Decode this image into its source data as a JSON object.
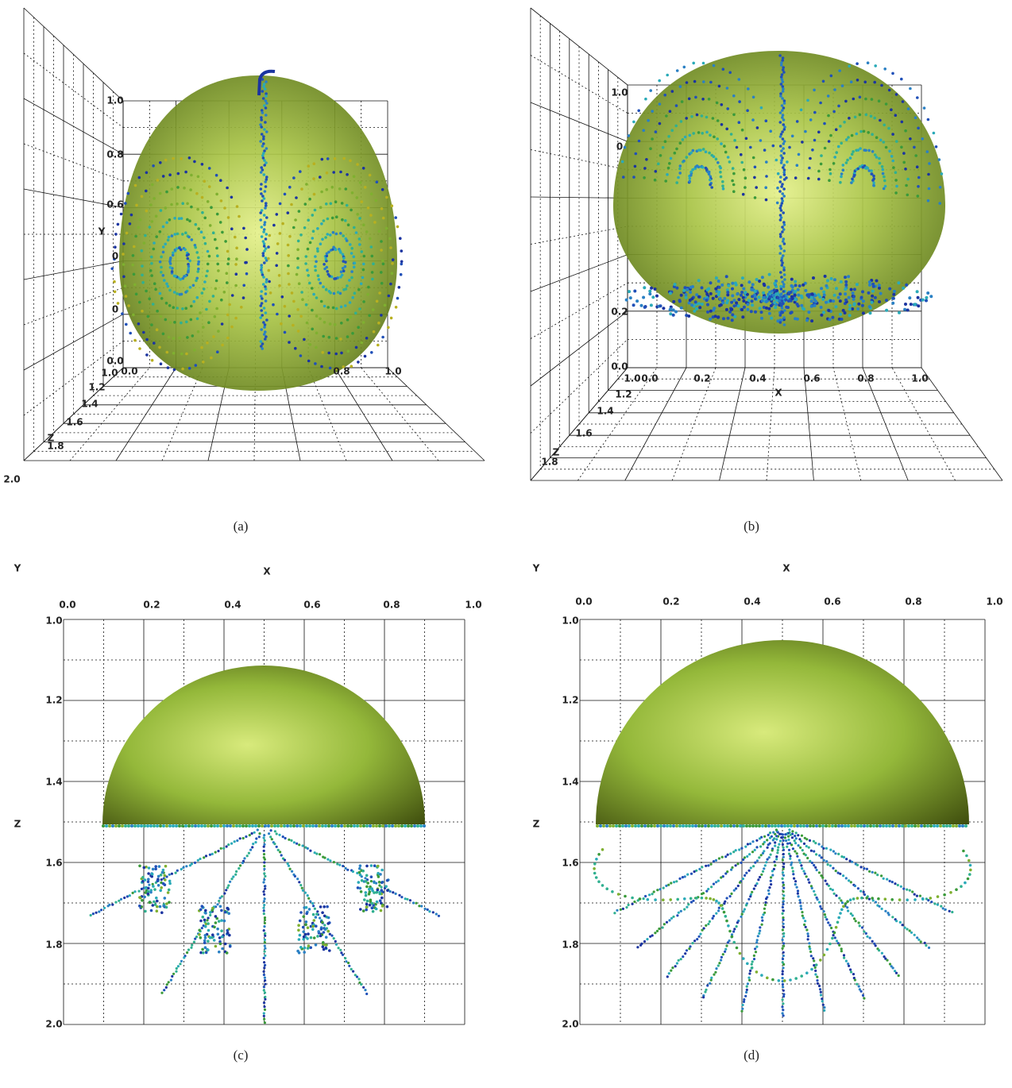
{
  "panels": [
    {
      "caption": "(a)",
      "axis_labels": [
        "Y",
        "Z"
      ],
      "tick_labels": [
        "1.0",
        "0.8",
        "0.6",
        "0",
        "0",
        "0.0",
        "1.0",
        "0.0",
        "0.8",
        "1.0",
        "1.2",
        "1.4",
        "1.6",
        "1.8",
        "2.0"
      ]
    },
    {
      "caption": "(b)",
      "axis_labels": [
        "X",
        "Z"
      ],
      "tick_labels": [
        "1.0",
        "0",
        "0.2",
        "0.0",
        "1.0",
        "0.0",
        "0.2",
        "0.4",
        "0.6",
        "0.8",
        "1.0",
        "1.2",
        "1.4",
        "1.6",
        "1.8"
      ]
    },
    {
      "caption": "(c)",
      "axis_labels": [
        "Y",
        "X",
        "Z"
      ],
      "tick_labels": [
        "0.0",
        "0.2",
        "0.4",
        "0.6",
        "0.8",
        "1.0",
        "1.0",
        "1.2",
        "1.4",
        "1.6",
        "1.8",
        "2.0"
      ]
    },
    {
      "caption": "(d)",
      "axis_labels": [
        "Y",
        "X",
        "Z"
      ],
      "tick_labels": [
        "0.0",
        "0.2",
        "0.4",
        "0.6",
        "0.8",
        "1.0",
        "1.0",
        "1.2",
        "1.4",
        "1.6",
        "1.8",
        "2.0"
      ]
    }
  ]
}
